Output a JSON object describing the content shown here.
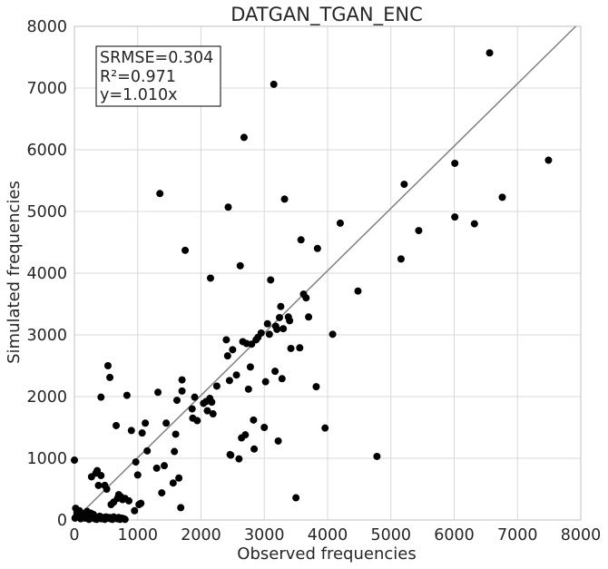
{
  "chart_data": {
    "type": "scatter",
    "title": "DATGAN_TGAN_ENC",
    "xlabel": "Observed frequencies",
    "ylabel": "Simulated frequencies",
    "xlim": [
      0,
      8000
    ],
    "ylim": [
      0,
      8000
    ],
    "xticks": [
      "0",
      "1000",
      "2000",
      "3000",
      "4000",
      "5000",
      "6000",
      "7000",
      "8000"
    ],
    "yticks": [
      "0",
      "1000",
      "2000",
      "3000",
      "4000",
      "5000",
      "6000",
      "7000",
      "8000"
    ],
    "grid": true,
    "annotation": [
      "SRMSE=0.304",
      "R²=0.971",
      "y=1.010x"
    ],
    "fit_line": {
      "slope": 1.01
    },
    "colors": {
      "points": "#000000",
      "line": "#808080",
      "grid": "#d9d9d9"
    },
    "series": [
      {
        "points": [
          [
            0,
            970
          ],
          [
            10,
            30
          ],
          [
            20,
            190
          ],
          [
            40,
            120
          ],
          [
            60,
            80
          ],
          [
            80,
            150
          ],
          [
            100,
            20
          ],
          [
            120,
            60
          ],
          [
            150,
            100
          ],
          [
            170,
            30
          ],
          [
            200,
            140
          ],
          [
            230,
            10
          ],
          [
            260,
            110
          ],
          [
            280,
            40
          ],
          [
            300,
            90
          ],
          [
            320,
            20
          ],
          [
            350,
            10
          ],
          [
            380,
            30
          ],
          [
            400,
            60
          ],
          [
            420,
            20
          ],
          [
            450,
            40
          ],
          [
            480,
            10
          ],
          [
            500,
            50
          ],
          [
            520,
            30
          ],
          [
            550,
            40
          ],
          [
            570,
            20
          ],
          [
            600,
            10
          ],
          [
            620,
            50
          ],
          [
            650,
            30
          ],
          [
            680,
            20
          ],
          [
            700,
            40
          ],
          [
            720,
            10
          ],
          [
            750,
            30
          ],
          [
            780,
            20
          ],
          [
            800,
            10
          ],
          [
            30,
            60
          ],
          [
            90,
            40
          ],
          [
            140,
            70
          ],
          [
            190,
            50
          ],
          [
            250,
            70
          ],
          [
            270,
            700
          ],
          [
            340,
            760
          ],
          [
            360,
            800
          ],
          [
            380,
            560
          ],
          [
            420,
            720
          ],
          [
            420,
            1990
          ],
          [
            480,
            560
          ],
          [
            510,
            500
          ],
          [
            530,
            2500
          ],
          [
            560,
            2310
          ],
          [
            580,
            250
          ],
          [
            620,
            290
          ],
          [
            660,
            1530
          ],
          [
            680,
            350
          ],
          [
            700,
            410
          ],
          [
            730,
            380
          ],
          [
            760,
            330
          ],
          [
            800,
            350
          ],
          [
            830,
            2020
          ],
          [
            860,
            310
          ],
          [
            900,
            1450
          ],
          [
            950,
            150
          ],
          [
            970,
            940
          ],
          [
            1000,
            730
          ],
          [
            1020,
            250
          ],
          [
            1050,
            270
          ],
          [
            1070,
            1410
          ],
          [
            1120,
            1570
          ],
          [
            1150,
            1120
          ],
          [
            1300,
            840
          ],
          [
            1320,
            2070
          ],
          [
            1350,
            5290
          ],
          [
            1380,
            440
          ],
          [
            1420,
            880
          ],
          [
            1450,
            1570
          ],
          [
            1560,
            600
          ],
          [
            1580,
            1110
          ],
          [
            1600,
            1390
          ],
          [
            1620,
            1940
          ],
          [
            1650,
            680
          ],
          [
            1680,
            200
          ],
          [
            1700,
            2270
          ],
          [
            1700,
            2090
          ],
          [
            1750,
            4370
          ],
          [
            1860,
            1800
          ],
          [
            1870,
            1650
          ],
          [
            1900,
            1990
          ],
          [
            1940,
            1610
          ],
          [
            2040,
            1890
          ],
          [
            2080,
            1920
          ],
          [
            2100,
            1770
          ],
          [
            2140,
            1970
          ],
          [
            2150,
            3920
          ],
          [
            2170,
            1910
          ],
          [
            2190,
            1720
          ],
          [
            2250,
            2170
          ],
          [
            2400,
            2920
          ],
          [
            2420,
            2660
          ],
          [
            2430,
            5070
          ],
          [
            2450,
            2260
          ],
          [
            2460,
            1060
          ],
          [
            2470,
            1050
          ],
          [
            2500,
            2760
          ],
          [
            2560,
            2350
          ],
          [
            2600,
            990
          ],
          [
            2620,
            4120
          ],
          [
            2640,
            1330
          ],
          [
            2660,
            2890
          ],
          [
            2680,
            6200
          ],
          [
            2700,
            1380
          ],
          [
            2720,
            2860
          ],
          [
            2750,
            2120
          ],
          [
            2780,
            2480
          ],
          [
            2800,
            2850
          ],
          [
            2830,
            1620
          ],
          [
            2840,
            1150
          ],
          [
            2870,
            2920
          ],
          [
            2900,
            2960
          ],
          [
            2950,
            3030
          ],
          [
            3000,
            1500
          ],
          [
            3020,
            2240
          ],
          [
            3050,
            3180
          ],
          [
            3080,
            3010
          ],
          [
            3100,
            3890
          ],
          [
            3150,
            7060
          ],
          [
            3170,
            2410
          ],
          [
            3180,
            3140
          ],
          [
            3200,
            3090
          ],
          [
            3220,
            1280
          ],
          [
            3240,
            3280
          ],
          [
            3260,
            3460
          ],
          [
            3280,
            2290
          ],
          [
            3300,
            3100
          ],
          [
            3320,
            5200
          ],
          [
            3380,
            3290
          ],
          [
            3400,
            3230
          ],
          [
            3420,
            2780
          ],
          [
            3500,
            360
          ],
          [
            3560,
            2790
          ],
          [
            3580,
            4540
          ],
          [
            3620,
            3660
          ],
          [
            3660,
            3600
          ],
          [
            3700,
            3290
          ],
          [
            3820,
            2160
          ],
          [
            3840,
            4400
          ],
          [
            3960,
            1490
          ],
          [
            4080,
            3010
          ],
          [
            4200,
            4810
          ],
          [
            4480,
            3710
          ],
          [
            4780,
            1030
          ],
          [
            5160,
            4230
          ],
          [
            5210,
            5440
          ],
          [
            5440,
            4690
          ],
          [
            6010,
            5780
          ],
          [
            6010,
            4910
          ],
          [
            6320,
            4800
          ],
          [
            6560,
            7570
          ],
          [
            6760,
            5230
          ],
          [
            7490,
            5830
          ]
        ]
      }
    ]
  }
}
